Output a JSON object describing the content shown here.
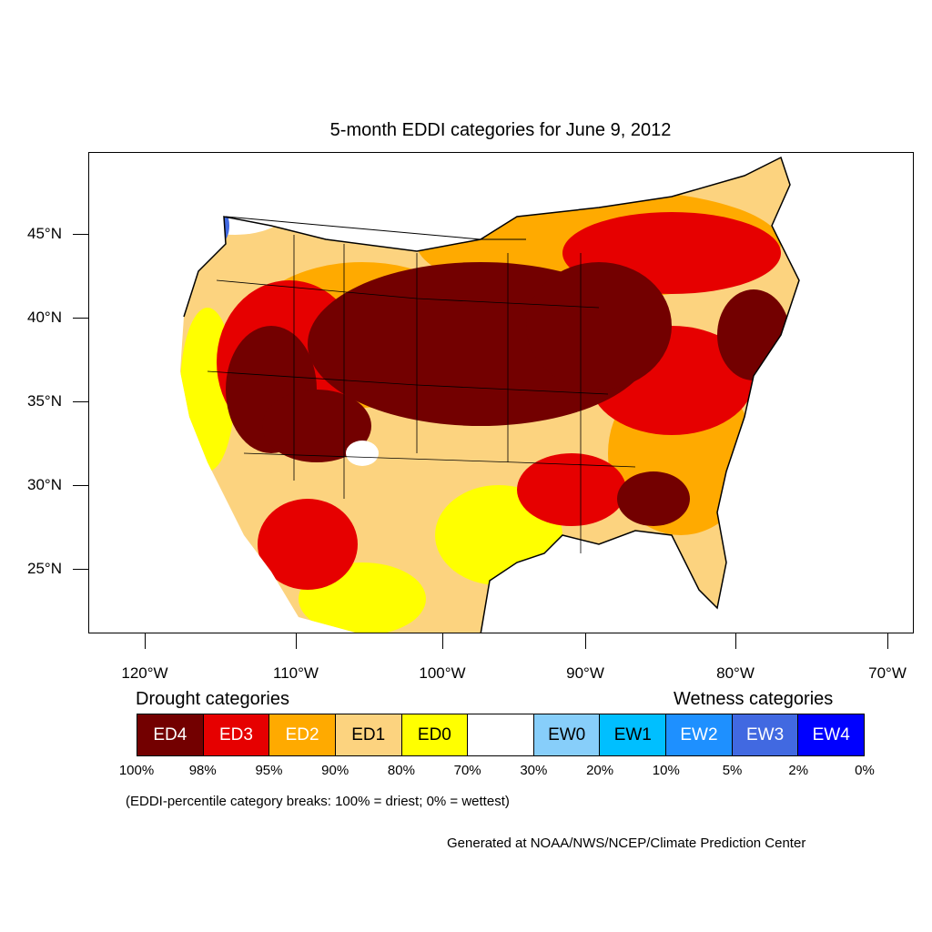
{
  "map": {
    "title": "5-month EDDI categories for June 9, 2012",
    "lat_labels": [
      "45°N",
      "40°N",
      "35°N",
      "30°N",
      "25°N"
    ],
    "lon_labels": [
      "120°W",
      "110°W",
      "100°W",
      "90°W",
      "80°W",
      "70°W"
    ]
  },
  "legend": {
    "drought_heading": "Drought categories",
    "wetness_heading": "Wetness categories",
    "categories": [
      {
        "label": "ED4",
        "color": "#730000",
        "text_color": "#ffffff"
      },
      {
        "label": "ED3",
        "color": "#e60000",
        "text_color": "#ffffff"
      },
      {
        "label": "ED2",
        "color": "#ffaa00",
        "text_color": "#ffffff"
      },
      {
        "label": "ED1",
        "color": "#fcd37f",
        "text_color": "#000000"
      },
      {
        "label": "ED0",
        "color": "#ffff00",
        "text_color": "#000000"
      },
      {
        "label": "",
        "color": "#ffffff",
        "text_color": "#000000"
      },
      {
        "label": "EW0",
        "color": "#87cefa",
        "text_color": "#000000"
      },
      {
        "label": "EW1",
        "color": "#00bfff",
        "text_color": "#000000"
      },
      {
        "label": "EW2",
        "color": "#1e90ff",
        "text_color": "#ffffff"
      },
      {
        "label": "EW3",
        "color": "#4169e1",
        "text_color": "#ffffff"
      },
      {
        "label": "EW4",
        "color": "#0000ff",
        "text_color": "#ffffff"
      }
    ],
    "percentiles": [
      "100%",
      "98%",
      "95%",
      "90%",
      "80%",
      "70%",
      "30%",
      "20%",
      "10%",
      "5%",
      "2%",
      "0%"
    ],
    "note": "(EDDI-percentile category breaks: 100% = driest; 0% = wettest)"
  },
  "credit": "Generated at NOAA/NWS/NCEP/Climate Prediction Center"
}
